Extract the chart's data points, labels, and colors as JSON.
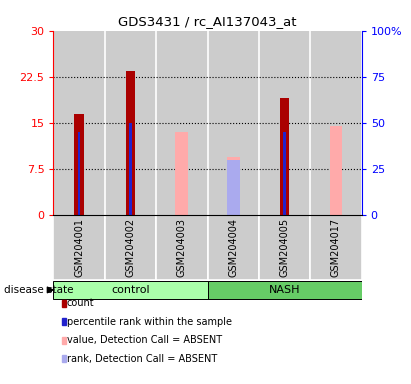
{
  "title": "GDS3431 / rc_AI137043_at",
  "samples": [
    "GSM204001",
    "GSM204002",
    "GSM204003",
    "GSM204004",
    "GSM204005",
    "GSM204017"
  ],
  "count_values": [
    16.5,
    23.5,
    0,
    0,
    19.0,
    0
  ],
  "percentile_values": [
    13.5,
    15.0,
    0,
    0,
    13.5,
    0
  ],
  "absent_value_values": [
    0,
    0,
    13.5,
    9.5,
    0,
    14.5
  ],
  "absent_rank_values": [
    0,
    0,
    0,
    9.0,
    0,
    0
  ],
  "left_ylim": [
    0,
    30
  ],
  "right_ylim": [
    0,
    100
  ],
  "left_yticks": [
    0,
    7.5,
    15,
    22.5,
    30
  ],
  "right_yticks": [
    0,
    25,
    50,
    75,
    100
  ],
  "left_yticklabels": [
    "0",
    "7.5",
    "15",
    "22.5",
    "30"
  ],
  "right_yticklabels": [
    "0",
    "25",
    "50",
    "75",
    "100%"
  ],
  "count_color": "#aa0000",
  "percentile_color": "#2222cc",
  "absent_value_color": "#ffaaaa",
  "absent_rank_color": "#aaaaee",
  "control_bg": "#aaffaa",
  "nash_bg": "#66cc66",
  "sample_bg": "#cccccc",
  "dotted_values": [
    7.5,
    15,
    22.5
  ],
  "legend_items": [
    {
      "label": "count",
      "color": "#aa0000"
    },
    {
      "label": "percentile rank within the sample",
      "color": "#2222cc"
    },
    {
      "label": "value, Detection Call = ABSENT",
      "color": "#ffaaaa"
    },
    {
      "label": "rank, Detection Call = ABSENT",
      "color": "#aaaaee"
    }
  ]
}
